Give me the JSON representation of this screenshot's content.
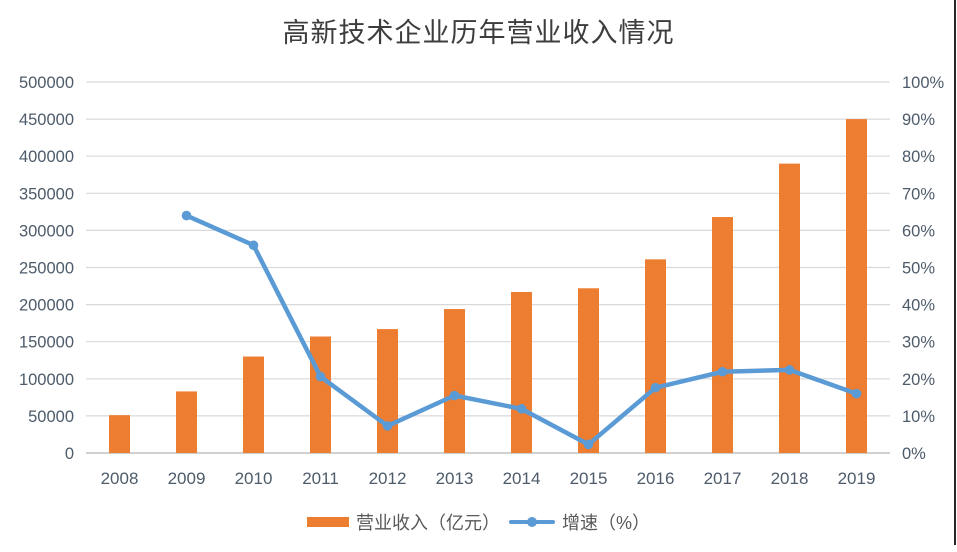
{
  "title": "高新技术企业历年营业收入情况",
  "colors": {
    "bar": "#ED7D31",
    "line": "#5B9BD5",
    "gridline": "#D9D9D9",
    "axis_line": "#D0D0D0",
    "axis_label": "#4D5B6A",
    "legend_text": "#595959",
    "title_text": "#3D3D3D",
    "right_border": "#262626"
  },
  "chart_data": {
    "type": "bar+line",
    "title": "高新技术企业历年营业收入情况",
    "categories": [
      "2008",
      "2009",
      "2010",
      "2011",
      "2012",
      "2013",
      "2014",
      "2015",
      "2016",
      "2017",
      "2018",
      "2019"
    ],
    "series": [
      {
        "name": "营业收入（亿元）",
        "type": "bar",
        "axis": "left",
        "color": "#ED7D31",
        "values": [
          51000,
          83000,
          130000,
          157000,
          167000,
          194000,
          217000,
          222000,
          261000,
          318000,
          390000,
          450000
        ]
      },
      {
        "name": "增速（%）",
        "type": "line",
        "axis": "right",
        "color": "#5B9BD5",
        "values": [
          null,
          64,
          56,
          20.6,
          7.3,
          15.5,
          11.9,
          2.3,
          17.6,
          21.9,
          22.4,
          16
        ]
      }
    ],
    "left_axis": {
      "min": 0,
      "max": 500000,
      "step": 50000,
      "tick_labels": [
        "0",
        "50000",
        "100000",
        "150000",
        "200000",
        "250000",
        "300000",
        "350000",
        "400000",
        "450000",
        "500000"
      ]
    },
    "right_axis": {
      "min": 0,
      "max": 100,
      "step": 10,
      "tick_labels": [
        "0%",
        "10%",
        "20%",
        "30%",
        "40%",
        "50%",
        "60%",
        "70%",
        "80%",
        "90%",
        "100%"
      ]
    },
    "grid": "horizontal",
    "legend_position": "bottom"
  },
  "legend": {
    "items": [
      {
        "label": "营业收入（亿元）"
      },
      {
        "label": "增速（%）"
      }
    ]
  }
}
